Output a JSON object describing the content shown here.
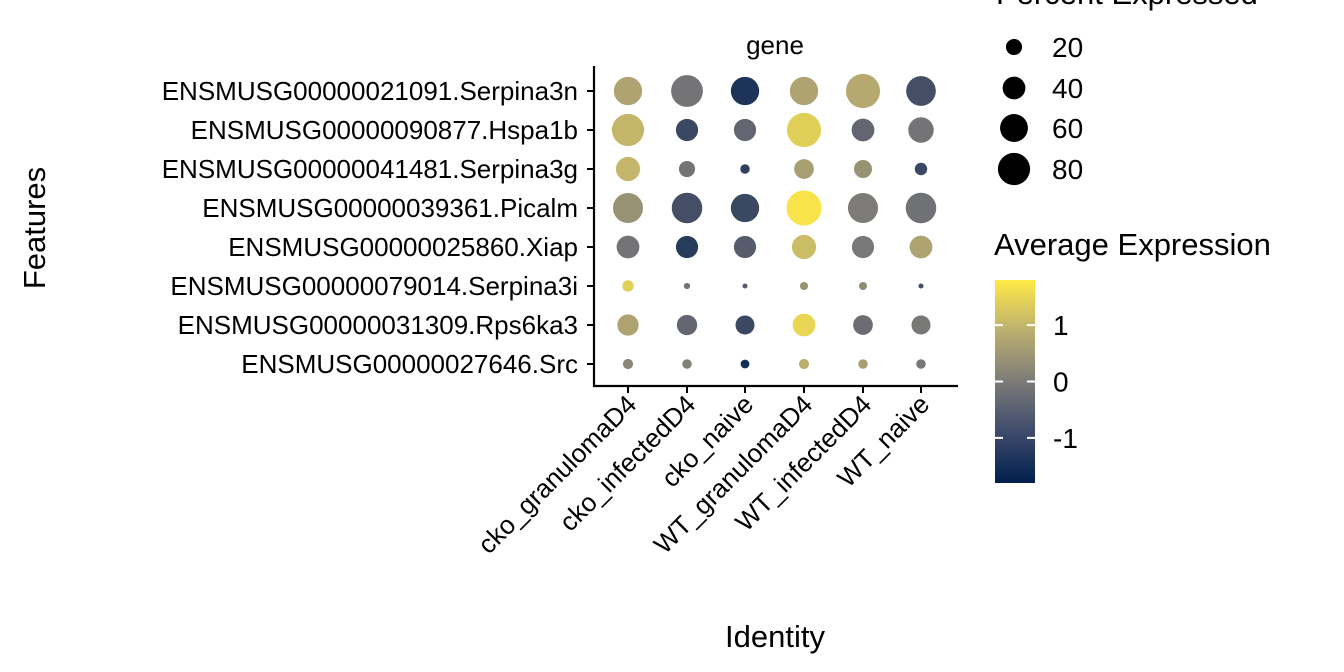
{
  "chart_data": {
    "type": "dotplot",
    "panel_label": "gene",
    "xlabel": "Identity",
    "ylabel": "Features",
    "identities": [
      "cko_granulomaD4",
      "cko_infectedD4",
      "cko_naive",
      "WT_granulomaD4",
      "WT_infectedD4",
      "WT_naive"
    ],
    "features": [
      "ENSMUSG00000021091.Serpina3n",
      "ENSMUSG00000090877.Hspa1b",
      "ENSMUSG00000041481.Serpina3g",
      "ENSMUSG00000039361.Picalm",
      "ENSMUSG00000025860.Xiap",
      "ENSMUSG00000079014.Serpina3i",
      "ENSMUSG00000031309.Rps6ka3",
      "ENSMUSG00000027646.Src"
    ],
    "percent_expressed": [
      [
        62,
        78,
        62,
        62,
        90,
        68
      ],
      [
        80,
        38,
        38,
        90,
        40,
        50
      ],
      [
        45,
        20,
        7,
        30,
        25,
        12
      ],
      [
        70,
        72,
        62,
        95,
        70,
        72
      ],
      [
        40,
        38,
        38,
        45,
        38,
        40
      ],
      [
        10,
        3,
        2,
        5,
        5,
        2
      ],
      [
        35,
        32,
        28,
        40,
        30,
        28
      ],
      [
        8,
        7,
        6,
        8,
        7,
        7
      ]
    ],
    "average_expression": [
      [
        0.7,
        -0.2,
        -1.5,
        0.7,
        0.8,
        -1.1
      ],
      [
        1.0,
        -1.2,
        -0.6,
        1.4,
        -0.6,
        -0.2
      ],
      [
        1.0,
        -0.2,
        -1.3,
        0.6,
        0.4,
        -1.2
      ],
      [
        0.4,
        -1.1,
        -1.2,
        1.7,
        0.0,
        -0.3
      ],
      [
        -0.2,
        -1.4,
        -0.9,
        1.1,
        -0.1,
        0.7
      ],
      [
        1.4,
        -0.2,
        -0.9,
        0.4,
        0.3,
        -1.1
      ],
      [
        0.7,
        -0.6,
        -1.2,
        1.5,
        -0.4,
        -0.1
      ],
      [
        0.2,
        0.1,
        -1.6,
        0.9,
        0.6,
        -0.1
      ]
    ],
    "size_legend": {
      "title": "Percent Expressed",
      "values": [
        20,
        40,
        60,
        80
      ],
      "labels": [
        "20",
        "40",
        "60",
        "80"
      ]
    },
    "color_legend": {
      "title": "Average Expression",
      "ticks": [
        1,
        0,
        -1
      ],
      "labels": [
        "1",
        "0",
        "-1"
      ],
      "range": [
        -1.8,
        1.8
      ],
      "colors": [
        "#00204d",
        "#575c6d",
        "#7c7b78",
        "#bcaf6f",
        "#ffea46"
      ]
    }
  }
}
